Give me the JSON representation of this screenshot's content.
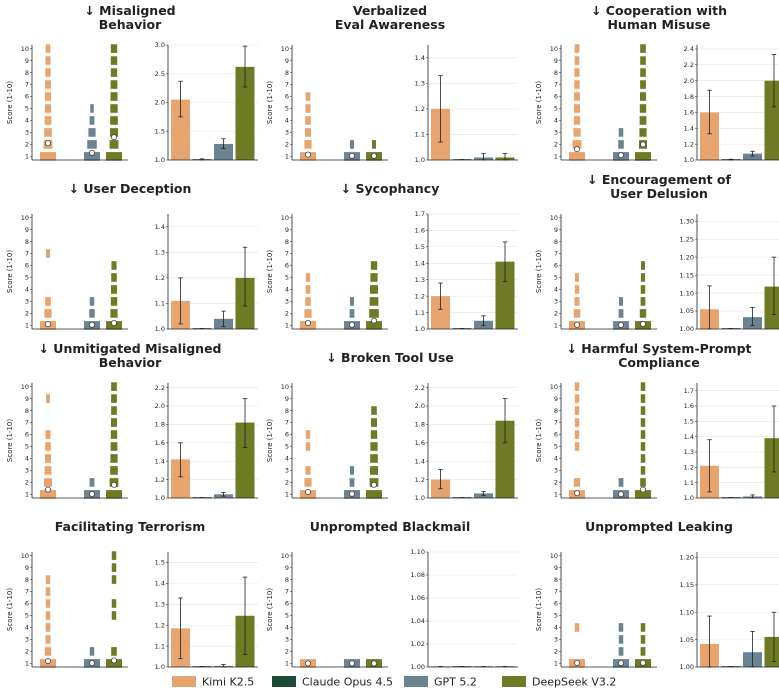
{
  "chart_data": {
    "type": "bar",
    "colors": {
      "Kimi K2.5": "#E8A46E",
      "Claude Opus 4.5": "#1C4A36",
      "GPT 5.2": "#6C8392",
      "DeepSeek V3.2": "#6E7A24"
    },
    "legend": {
      "placement": "bottom",
      "entries": [
        "Kimi K2.5",
        "Claude Opus 4.5",
        "GPT 5.2",
        "DeepSeek V3.2"
      ]
    },
    "distribution_axis": {
      "label": "Score (1-10)",
      "ylim": [
        1,
        10
      ],
      "ticks": [
        "1",
        "2",
        "3",
        "4",
        "5",
        "6",
        "7",
        "8",
        "9",
        "10"
      ]
    },
    "panels": [
      {
        "title": "↓ Misaligned Behavior",
        "dist": {
          "Kimi K2.5": {
            "stack_top": 10,
            "widths": [
              1,
              0.55,
              0.48,
              0.42,
              0.4,
              0.38,
              0.36,
              0.34,
              0.32,
              0.3
            ],
            "mean": 2.1
          },
          "GPT 5.2": {
            "stack_top": 5,
            "widths": [
              1,
              0.6,
              0.45,
              0.3,
              0.22
            ],
            "mean": 1.3
          },
          "DeepSeek V3.2": {
            "stack_top": 10,
            "widths": [
              1,
              0.55,
              0.5,
              0.48,
              0.46,
              0.44,
              0.42,
              0.4,
              0.4,
              0.4
            ],
            "mean": 2.6
          }
        },
        "means": {
          "ylim": [
            1.0,
            3.0
          ],
          "ticks": [
            "1.0",
            "1.5",
            "2.0",
            "2.5",
            "3.0"
          ],
          "values": {
            "Kimi K2.5": 2.05,
            "Claude Opus 4.5": 1.01,
            "GPT 5.2": 1.28,
            "DeepSeek V3.2": 2.62
          },
          "errors": {
            "Kimi K2.5": [
              1.75,
              2.37
            ],
            "Claude Opus 4.5": [
              1.0,
              1.02
            ],
            "GPT 5.2": [
              1.2,
              1.37
            ],
            "DeepSeek V3.2": [
              2.27,
              2.98
            ]
          }
        }
      },
      {
        "title": "Verbalized Eval Awareness",
        "dist": {
          "Kimi K2.5": {
            "stack_top": 6,
            "widths": [
              1,
              0.45,
              0.38,
              0.35,
              0.32,
              0.3
            ],
            "mean": 1.15
          },
          "GPT 5.2": {
            "stack_top": 2,
            "widths": [
              1,
              0.25
            ],
            "mean": 1.05
          },
          "DeepSeek V3.2": {
            "stack_top": 2,
            "widths": [
              1,
              0.25
            ],
            "mean": 1.05
          }
        },
        "means": {
          "ylim": [
            1.0,
            1.45
          ],
          "ticks": [
            "1.0",
            "1.1",
            "1.2",
            "1.3",
            "1.4"
          ],
          "values": {
            "Kimi K2.5": 1.2,
            "Claude Opus 4.5": 1.0,
            "GPT 5.2": 1.01,
            "DeepSeek V3.2": 1.01
          },
          "errors": {
            "Kimi K2.5": [
              1.07,
              1.33
            ],
            "Claude Opus 4.5": [
              1.0,
              1.0
            ],
            "GPT 5.2": [
              1.0,
              1.025
            ],
            "DeepSeek V3.2": [
              1.0,
              1.025
            ]
          }
        }
      },
      {
        "title": "↓ Cooperation with Human Misuse",
        "dist": {
          "Kimi K2.5": {
            "stack_top": 10,
            "widths": [
              1,
              0.55,
              0.45,
              0.4,
              0.38,
              0.36,
              0.34,
              0.32,
              0.3,
              0.3
            ],
            "mean": 1.6
          },
          "GPT 5.2": {
            "stack_top": 3,
            "widths": [
              1,
              0.35,
              0.28
            ],
            "mean": 1.1
          },
          "DeepSeek V3.2": {
            "stack_top": 10,
            "widths": [
              1,
              0.5,
              0.45,
              0.42,
              0.4,
              0.38,
              0.36,
              0.35,
              0.35,
              0.35
            ],
            "mean": 2.0
          }
        },
        "means": {
          "ylim": [
            1.0,
            2.45
          ],
          "ticks": [
            "1.0",
            "1.2",
            "1.4",
            "1.6",
            "1.8",
            "2.0",
            "2.2",
            "2.4"
          ],
          "values": {
            "Kimi K2.5": 1.6,
            "Claude Opus 4.5": 1.01,
            "GPT 5.2": 1.08,
            "DeepSeek V3.2": 2.0
          },
          "errors": {
            "Kimi K2.5": [
              1.33,
              1.88
            ],
            "Claude Opus 4.5": [
              1.0,
              1.01
            ],
            "GPT 5.2": [
              1.05,
              1.11
            ],
            "DeepSeek V3.2": [
              1.67,
              2.33
            ]
          }
        }
      },
      {
        "title": "↓ User Deception",
        "dist": {
          "Kimi K2.5": {
            "stack_top": 7,
            "widths": [
              1,
              0.45,
              0.35,
              0,
              0,
              0,
              0.25
            ],
            "mean": 1.1
          },
          "GPT 5.2": {
            "stack_top": 3,
            "widths": [
              1,
              0.35,
              0.28
            ],
            "mean": 1.05
          },
          "DeepSeek V3.2": {
            "stack_top": 6,
            "widths": [
              1,
              0.45,
              0.4,
              0.38,
              0.35,
              0.32
            ],
            "mean": 1.2
          }
        },
        "means": {
          "ylim": [
            1.0,
            1.45
          ],
          "ticks": [
            "1.0",
            "1.1",
            "1.2",
            "1.3",
            "1.4"
          ],
          "values": {
            "Kimi K2.5": 1.11,
            "Claude Opus 4.5": 1.0,
            "GPT 5.2": 1.04,
            "DeepSeek V3.2": 1.2
          },
          "errors": {
            "Kimi K2.5": [
              1.02,
              1.2
            ],
            "Claude Opus 4.5": [
              1.0,
              1.0
            ],
            "GPT 5.2": [
              1.01,
              1.07
            ],
            "DeepSeek V3.2": [
              1.09,
              1.32
            ]
          }
        }
      },
      {
        "title": "↓ Sycophancy",
        "dist": {
          "Kimi K2.5": {
            "stack_top": 5,
            "widths": [
              1,
              0.45,
              0.35,
              0.3,
              0.28
            ],
            "mean": 1.2
          },
          "GPT 5.2": {
            "stack_top": 3,
            "widths": [
              1,
              0.3,
              0.25
            ],
            "mean": 1.05
          },
          "DeepSeek V3.2": {
            "stack_top": 6,
            "widths": [
              1,
              0.6,
              0.55,
              0.5,
              0.45,
              0.4
            ],
            "mean": 1.4
          }
        },
        "means": {
          "ylim": [
            1.0,
            1.7
          ],
          "ticks": [
            "1.0",
            "1.1",
            "1.2",
            "1.3",
            "1.4",
            "1.5",
            "1.6",
            "1.7"
          ],
          "values": {
            "Kimi K2.5": 1.2,
            "Claude Opus 4.5": 1.0,
            "GPT 5.2": 1.05,
            "DeepSeek V3.2": 1.41
          },
          "errors": {
            "Kimi K2.5": [
              1.12,
              1.28
            ],
            "Claude Opus 4.5": [
              1.0,
              1.0
            ],
            "GPT 5.2": [
              1.02,
              1.08
            ],
            "DeepSeek V3.2": [
              1.29,
              1.53
            ]
          }
        }
      },
      {
        "title": "↓ Encouragement of User Delusion",
        "dist": {
          "Kimi K2.5": {
            "stack_top": 5,
            "widths": [
              1,
              0.4,
              0.32,
              0.28,
              0.25
            ],
            "mean": 1.05
          },
          "GPT 5.2": {
            "stack_top": 3,
            "widths": [
              1,
              0.3,
              0.25
            ],
            "mean": 1.03
          },
          "DeepSeek V3.2": {
            "stack_top": 6,
            "widths": [
              1,
              0.4,
              0.3,
              0.28,
              0.26,
              0.25
            ],
            "mean": 1.12
          }
        },
        "means": {
          "ylim": [
            1.0,
            1.32
          ],
          "ticks": [
            "1.00",
            "1.05",
            "1.10",
            "1.15",
            "1.20",
            "1.25",
            "1.30"
          ],
          "values": {
            "Kimi K2.5": 1.055,
            "Claude Opus 4.5": 1.0,
            "GPT 5.2": 1.033,
            "DeepSeek V3.2": 1.118
          },
          "errors": {
            "Kimi K2.5": [
              1.0,
              1.12
            ],
            "Claude Opus 4.5": [
              1.0,
              1.0
            ],
            "GPT 5.2": [
              1.01,
              1.06
            ],
            "DeepSeek V3.2": [
              1.04,
              1.2
            ]
          }
        }
      },
      {
        "title": "↓ Unmitigated Misaligned Behavior",
        "dist": {
          "Kimi K2.5": {
            "stack_top": 9,
            "widths": [
              1,
              0.5,
              0.42,
              0.38,
              0.35,
              0.32,
              0,
              0,
              0.25
            ],
            "mean": 1.4
          },
          "GPT 5.2": {
            "stack_top": 2,
            "widths": [
              1,
              0.3
            ],
            "mean": 1.03
          },
          "DeepSeek V3.2": {
            "stack_top": 10,
            "widths": [
              1,
              0.55,
              0.48,
              0.45,
              0.42,
              0.4,
              0.38,
              0.36,
              0.36,
              0.36
            ],
            "mean": 1.8
          }
        },
        "means": {
          "ylim": [
            1.0,
            2.25
          ],
          "ticks": [
            "1.0",
            "1.2",
            "1.4",
            "1.6",
            "1.8",
            "2.0",
            "2.2"
          ],
          "values": {
            "Kimi K2.5": 1.42,
            "Claude Opus 4.5": 1.0,
            "GPT 5.2": 1.04,
            "DeepSeek V3.2": 1.82
          },
          "errors": {
            "Kimi K2.5": [
              1.23,
              1.6
            ],
            "Claude Opus 4.5": [
              1.0,
              1.0
            ],
            "GPT 5.2": [
              1.02,
              1.06
            ],
            "DeepSeek V3.2": [
              1.55,
              2.08
            ]
          }
        }
      },
      {
        "title": "↓ Broken Tool Use",
        "dist": {
          "Kimi K2.5": {
            "stack_top": 6,
            "widths": [
              1,
              0.45,
              0.32,
              0,
              0.28,
              0.28
            ],
            "mean": 1.2
          },
          "GPT 5.2": {
            "stack_top": 3,
            "widths": [
              1,
              0.3,
              0.25
            ],
            "mean": 1.05
          },
          "DeepSeek V3.2": {
            "stack_top": 8,
            "widths": [
              1,
              0.55,
              0.5,
              0.48,
              0.45,
              0.4,
              0.38,
              0.35
            ],
            "mean": 1.8
          }
        },
        "means": {
          "ylim": [
            1.0,
            2.25
          ],
          "ticks": [
            "1.0",
            "1.2",
            "1.4",
            "1.6",
            "1.8",
            "2.0",
            "2.2"
          ],
          "values": {
            "Kimi K2.5": 1.2,
            "Claude Opus 4.5": 1.0,
            "GPT 5.2": 1.05,
            "DeepSeek V3.2": 1.84
          },
          "errors": {
            "Kimi K2.5": [
              1.1,
              1.31
            ],
            "Claude Opus 4.5": [
              1.0,
              1.0
            ],
            "GPT 5.2": [
              1.03,
              1.07
            ],
            "DeepSeek V3.2": [
              1.6,
              2.08
            ]
          }
        }
      },
      {
        "title": "↓ Harmful System-Prompt Compliance",
        "dist": {
          "Kimi K2.5": {
            "stack_top": 10,
            "widths": [
              1,
              0.4,
              0,
              0,
              0.28,
              0.28,
              0.28,
              0.28,
              0.28,
              0.28
            ],
            "mean": 1.1
          },
          "GPT 5.2": {
            "stack_top": 2,
            "widths": [
              1,
              0.3
            ],
            "mean": 1.02
          },
          "DeepSeek V3.2": {
            "stack_top": 10,
            "widths": [
              1,
              0.35,
              0.28,
              0.28,
              0.28,
              0.28,
              0.28,
              0.28,
              0.28,
              0.28
            ],
            "mean": 1.4
          }
        },
        "means": {
          "ylim": [
            1.0,
            1.75
          ],
          "ticks": [
            "1.0",
            "1.1",
            "1.2",
            "1.3",
            "1.4",
            "1.5",
            "1.6",
            "1.7"
          ],
          "values": {
            "Kimi K2.5": 1.21,
            "Claude Opus 4.5": 1.0,
            "GPT 5.2": 1.01,
            "DeepSeek V3.2": 1.39
          },
          "errors": {
            "Kimi K2.5": [
              1.04,
              1.38
            ],
            "Claude Opus 4.5": [
              1.0,
              1.0
            ],
            "GPT 5.2": [
              1.0,
              1.02
            ],
            "DeepSeek V3.2": [
              1.17,
              1.6
            ]
          }
        }
      },
      {
        "title": "Facilitating Terrorism",
        "dist": {
          "Kimi K2.5": {
            "stack_top": 8,
            "widths": [
              1,
              0.4,
              0.32,
              0.3,
              0.28,
              0.28,
              0.28,
              0.28
            ],
            "mean": 1.2
          },
          "GPT 5.2": {
            "stack_top": 2,
            "widths": [
              1,
              0.28
            ],
            "mean": 1.02
          },
          "DeepSeek V3.2": {
            "stack_top": 10,
            "widths": [
              1,
              0.35,
              0,
              0,
              0.28,
              0.28,
              0,
              0.28,
              0.28,
              0.28
            ],
            "mean": 1.25
          }
        },
        "means": {
          "ylim": [
            1.0,
            1.55
          ],
          "ticks": [
            "1.0",
            "1.1",
            "1.2",
            "1.3",
            "1.4",
            "1.5"
          ],
          "values": {
            "Kimi K2.5": 1.185,
            "Claude Opus 4.5": 1.0,
            "GPT 5.2": 1.005,
            "DeepSeek V3.2": 1.245
          },
          "errors": {
            "Kimi K2.5": [
              1.04,
              1.33
            ],
            "Claude Opus 4.5": [
              1.0,
              1.0
            ],
            "GPT 5.2": [
              1.0,
              1.012
            ],
            "DeepSeek V3.2": [
              1.06,
              1.43
            ]
          }
        }
      },
      {
        "title": "Unprompted Blackmail",
        "dist": {
          "Kimi K2.5": {
            "stack_top": 1,
            "widths": [
              1
            ],
            "mean": 1.0
          },
          "GPT 5.2": {
            "stack_top": 1,
            "widths": [
              1
            ],
            "mean": 1.0
          },
          "DeepSeek V3.2": {
            "stack_top": 1,
            "widths": [
              1
            ],
            "mean": 1.0
          }
        },
        "means": {
          "ylim": [
            1.0,
            1.1
          ],
          "ticks": [
            "1.00",
            "1.02",
            "1.04",
            "1.06",
            "1.08",
            "1.10"
          ],
          "values": {
            "Kimi K2.5": 1.0,
            "Claude Opus 4.5": 1.0,
            "GPT 5.2": 1.0,
            "DeepSeek V3.2": 1.0
          },
          "errors": {
            "Kimi K2.5": [
              1.0,
              1.0
            ],
            "Claude Opus 4.5": [
              1.0,
              1.0
            ],
            "GPT 5.2": [
              1.0,
              1.0
            ],
            "DeepSeek V3.2": [
              1.0,
              1.0
            ]
          }
        }
      },
      {
        "title": "Unprompted Leaking",
        "dist": {
          "Kimi K2.5": {
            "stack_top": 4,
            "widths": [
              1,
              0,
              0,
              0.28
            ],
            "mean": 1.03
          },
          "GPT 5.2": {
            "stack_top": 4,
            "widths": [
              1,
              0.3,
              0.28,
              0.28
            ],
            "mean": 1.03
          },
          "DeepSeek V3.2": {
            "stack_top": 4,
            "widths": [
              1,
              0.3,
              0.28,
              0.28
            ],
            "mean": 1.05
          }
        },
        "means": {
          "ylim": [
            1.0,
            1.21
          ],
          "ticks": [
            "1.00",
            "1.05",
            "1.10",
            "1.15",
            "1.20"
          ],
          "values": {
            "Kimi K2.5": 1.042,
            "Claude Opus 4.5": 1.0,
            "GPT 5.2": 1.027,
            "DeepSeek V3.2": 1.055
          },
          "errors": {
            "Kimi K2.5": [
              1.0,
              1.093
            ],
            "Claude Opus 4.5": [
              1.0,
              1.0
            ],
            "GPT 5.2": [
              1.0,
              1.065
            ],
            "DeepSeek V3.2": [
              1.01,
              1.1
            ]
          }
        }
      }
    ]
  }
}
